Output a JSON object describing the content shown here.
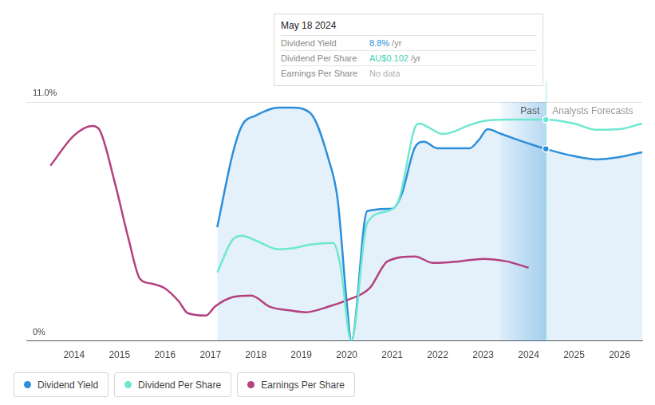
{
  "chart_data": {
    "type": "line",
    "xlim": [
      2012.95,
      2026.5
    ],
    "xticks": [
      2014,
      2015,
      2016,
      2017,
      2018,
      2019,
      2020,
      2021,
      2022,
      2023,
      2024,
      2025,
      2026
    ],
    "ylim": [
      0,
      11
    ],
    "yticks": [
      {
        "value": 0,
        "label": "0%"
      },
      {
        "value": 11,
        "label": "11.0%"
      }
    ],
    "grid": true,
    "legend": "bottom",
    "series": [
      {
        "name": "Dividend Yield",
        "color": "#2d8fd9",
        "type": "area",
        "x": [
          2017.15,
          2017.5,
          2017.7,
          2018.0,
          2018.5,
          2018.8,
          2019.2,
          2019.6,
          2019.8,
          2020.0,
          2020.1,
          2020.45,
          2021.0,
          2021.2,
          2021.5,
          2021.7,
          2022.0,
          2022.7,
          2022.9,
          2023.1,
          2023.4,
          2024.0,
          2024.38,
          2025.0,
          2025.5,
          2026.0,
          2026.5
        ],
        "values": [
          5.24,
          8.7,
          9.94,
          10.38,
          10.74,
          10.74,
          10.49,
          8.36,
          6.5,
          1.76,
          0,
          5.98,
          6.09,
          6.71,
          8.91,
          9.17,
          8.87,
          8.87,
          9.24,
          9.75,
          9.53,
          9.09,
          8.84,
          8.51,
          8.36,
          8.47,
          8.69
        ]
      },
      {
        "name": "Dividend Per Share",
        "color": "#6ee7d2",
        "type": "line",
        "x": [
          2017.15,
          2017.5,
          2017.7,
          2018.0,
          2018.5,
          2018.8,
          2019.2,
          2019.7,
          2019.85,
          2020.1,
          2020.45,
          2020.9,
          2021.15,
          2021.5,
          2021.6,
          2021.8,
          2022.1,
          2022.3,
          2022.7,
          2023.0,
          2023.5,
          2024.38,
          2025.0,
          2025.5,
          2026.0,
          2026.5
        ],
        "values": [
          3.15,
          4.69,
          4.84,
          4.62,
          4.22,
          4.26,
          4.44,
          4.51,
          3.59,
          0,
          5.43,
          5.98,
          6.53,
          9.83,
          10.01,
          9.83,
          9.53,
          9.6,
          9.94,
          10.12,
          10.19,
          10.19,
          10.01,
          9.72,
          9.75,
          10.01
        ]
      },
      {
        "name": "Earnings Per Share",
        "color": "#b3417f",
        "type": "line",
        "x": [
          2013.48,
          2014.0,
          2014.4,
          2014.55,
          2014.9,
          2015.2,
          2015.45,
          2015.7,
          2016.0,
          2016.3,
          2016.5,
          2016.9,
          2017.1,
          2017.5,
          2017.9,
          2018.3,
          2018.8,
          2019.1,
          2019.6,
          2020.0,
          2020.5,
          2020.9,
          2021.5,
          2021.9,
          2022.5,
          2023.0,
          2023.5,
          2024.0
        ],
        "values": [
          8.07,
          9.46,
          9.9,
          9.75,
          7.26,
          4.69,
          2.86,
          2.64,
          2.42,
          1.83,
          1.28,
          1.17,
          1.58,
          2.02,
          2.09,
          1.58,
          1.39,
          1.32,
          1.58,
          1.87,
          2.42,
          3.67,
          3.89,
          3.59,
          3.67,
          3.78,
          3.67,
          3.37
        ]
      }
    ],
    "annotations": {
      "tooltip": {
        "date": "May 18 2024",
        "x": 2024.38,
        "rows": [
          {
            "label": "Dividend Yield",
            "value": "8.8%",
            "unit": "/yr",
            "color": "#2d8fd9"
          },
          {
            "label": "Dividend Per Share",
            "value": "AU$0.102",
            "unit": "/yr",
            "color": "#3fd1b8"
          },
          {
            "label": "Earnings Per Share",
            "value": "No data",
            "color": "#b0b0b0"
          }
        ]
      },
      "past": {
        "label": "Past",
        "range": [
          2023.38,
          2024.38
        ]
      },
      "forecast": {
        "label": "Analysts Forecasts"
      }
    }
  }
}
